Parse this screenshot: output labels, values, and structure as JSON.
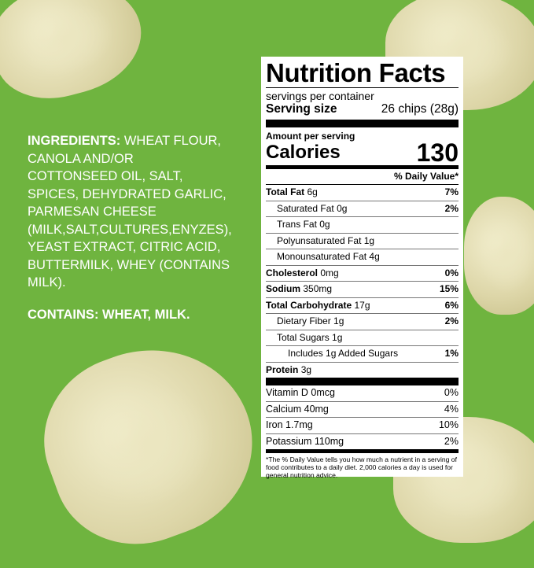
{
  "colors": {
    "background": "#6fb43f",
    "label": "#ffffff",
    "text": "#000000"
  },
  "ingredients": {
    "heading": "INGREDIENTS:",
    "lines": [
      "WHEAT FLOUR,",
      "CANOLA AND/OR",
      "COTTONSEED OIL, SALT,",
      "SPICES, DEHYDRATED GARLIC,",
      "PARMESAN CHEESE",
      "(MILK,SALT,CULTURES,ENYZES),",
      "YEAST EXTRACT, CITRIC ACID,",
      "BUTTERMILK, WHEY (CONTAINS",
      "MILK)."
    ],
    "contains": "CONTAINS: WHEAT, MILK."
  },
  "label": {
    "title": "Nutrition Facts",
    "servings": "servings per container",
    "serving_size_label": "Serving size",
    "serving_size_value": "26 chips (28g)",
    "amount_per_serving": "Amount per serving",
    "calories_label": "Calories",
    "calories_value": "130",
    "dv_header": "% Daily Value*",
    "rows": [
      {
        "name": "Total Fat",
        "amount": "6g",
        "dv": "7%",
        "bold": true,
        "indent": 0
      },
      {
        "name": "Saturated Fat",
        "amount": "0g",
        "dv": "2%",
        "bold": false,
        "indent": 1
      },
      {
        "name": "Trans Fat",
        "amount": "0g",
        "dv": "",
        "bold": false,
        "indent": 1
      },
      {
        "name": "Polyunsaturated Fat",
        "amount": "1g",
        "dv": "",
        "bold": false,
        "indent": 1
      },
      {
        "name": "Monounsaturated Fat",
        "amount": "4g",
        "dv": "",
        "bold": false,
        "indent": 1
      },
      {
        "name": "Cholesterol",
        "amount": "0mg",
        "dv": "0%",
        "bold": true,
        "indent": 0
      },
      {
        "name": "Sodium",
        "amount": "350mg",
        "dv": "15%",
        "bold": true,
        "indent": 0
      },
      {
        "name": "Total Carbohydrate",
        "amount": "17g",
        "dv": "6%",
        "bold": true,
        "indent": 0
      },
      {
        "name": "Dietary Fiber",
        "amount": "1g",
        "dv": "2%",
        "bold": false,
        "indent": 1
      },
      {
        "name": "Total Sugars",
        "amount": "1g",
        "dv": "",
        "bold": false,
        "indent": 1
      },
      {
        "name": "Includes 1g Added Sugars",
        "amount": "",
        "dv": "1%",
        "bold": false,
        "indent": 2
      },
      {
        "name": "Protein",
        "amount": "3g",
        "dv": "",
        "bold": true,
        "indent": 0
      }
    ],
    "vitamins": [
      {
        "name": "Vitamin D 0mcg",
        "dv": "0%"
      },
      {
        "name": "Calcium 40mg",
        "dv": "4%"
      },
      {
        "name": "Iron 1.7mg",
        "dv": "10%"
      },
      {
        "name": "Potassium 110mg",
        "dv": "2%"
      }
    ],
    "footnote": "*The % Daily Value tells you how much a nutrient in a serving of food contributes to a daily diet. 2,000 calories a day is used for general nutrition advice."
  }
}
